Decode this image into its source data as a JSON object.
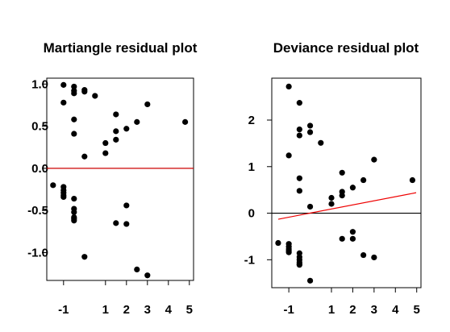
{
  "chart_data": [
    {
      "type": "scatter",
      "title": "Martiangle residual plot",
      "xlabel": "",
      "ylabel": "",
      "xlim": [
        -1.8,
        5.2
      ],
      "ylim": [
        -1.33,
        1.07
      ],
      "x_ticks": [
        -1,
        1,
        2,
        3,
        4,
        5
      ],
      "y_ticks": [
        1.0,
        0.5,
        0.0,
        -0.5,
        -1.0
      ],
      "x_tick_labels": [
        "-1",
        "1",
        "2",
        "3",
        "4",
        "5"
      ],
      "y_tick_labels": [
        "1.0",
        "0.5",
        "0.0",
        "-0.5",
        "-1.0"
      ],
      "hline": {
        "y": 0,
        "color": "#cc0000"
      },
      "fit_line": null,
      "points": [
        [
          -1.0,
          0.99
        ],
        [
          -0.5,
          0.97
        ],
        [
          0.0,
          0.93
        ],
        [
          -0.5,
          0.92
        ],
        [
          0.0,
          0.91
        ],
        [
          -0.5,
          0.89
        ],
        [
          0.5,
          0.86
        ],
        [
          -1.0,
          0.78
        ],
        [
          3.0,
          0.76
        ],
        [
          1.5,
          0.64
        ],
        [
          -0.5,
          0.58
        ],
        [
          2.5,
          0.55
        ],
        [
          4.8,
          0.55
        ],
        [
          2.0,
          0.47
        ],
        [
          1.5,
          0.44
        ],
        [
          -0.5,
          0.41
        ],
        [
          1.5,
          0.34
        ],
        [
          1.0,
          0.3
        ],
        [
          1.0,
          0.18
        ],
        [
          0.0,
          0.14
        ],
        [
          -1.5,
          -0.2
        ],
        [
          -1.0,
          -0.22
        ],
        [
          -1.0,
          -0.26
        ],
        [
          -1.0,
          -0.29
        ],
        [
          -1.0,
          -0.32
        ],
        [
          -1.0,
          -0.34
        ],
        [
          -0.5,
          -0.36
        ],
        [
          2.0,
          -0.44
        ],
        [
          -0.5,
          -0.48
        ],
        [
          -0.5,
          -0.52
        ],
        [
          -0.5,
          -0.58
        ],
        [
          -0.5,
          -0.6
        ],
        [
          -0.5,
          -0.62
        ],
        [
          1.5,
          -0.65
        ],
        [
          2.0,
          -0.66
        ],
        [
          0.0,
          -1.05
        ],
        [
          2.5,
          -1.2
        ],
        [
          3.0,
          -1.27
        ]
      ]
    },
    {
      "type": "scatter",
      "title": "Deviance residual plot",
      "xlabel": "",
      "ylabel": "",
      "xlim": [
        -1.8,
        5.2
      ],
      "ylim": [
        -1.6,
        2.9
      ],
      "x_ticks": [
        -1,
        1,
        2,
        3,
        4,
        5
      ],
      "y_ticks": [
        2,
        1,
        0,
        -1
      ],
      "x_tick_labels": [
        "-1",
        "1",
        "2",
        "3",
        "4",
        "5"
      ],
      "y_tick_labels": [
        "2",
        "1",
        "0",
        "-1"
      ],
      "hline": {
        "y": 0,
        "color": "#000000"
      },
      "fit_line": {
        "x": [
          -1.8,
          5.2
        ],
        "y": [
          -0.13,
          0.44
        ],
        "color": "#ee0000"
      },
      "points": [
        [
          -1.0,
          2.72
        ],
        [
          -0.5,
          2.37
        ],
        [
          0.0,
          1.88
        ],
        [
          -0.5,
          1.8
        ],
        [
          0.0,
          1.74
        ],
        [
          -0.5,
          1.67
        ],
        [
          0.5,
          1.51
        ],
        [
          -1.0,
          1.24
        ],
        [
          3.0,
          1.15
        ],
        [
          1.5,
          0.87
        ],
        [
          -0.5,
          0.75
        ],
        [
          2.5,
          0.71
        ],
        [
          4.8,
          0.71
        ],
        [
          2.0,
          0.55
        ],
        [
          1.5,
          0.46
        ],
        [
          -0.5,
          0.48
        ],
        [
          1.5,
          0.38
        ],
        [
          1.0,
          0.33
        ],
        [
          1.0,
          0.2
        ],
        [
          0.0,
          0.14
        ],
        [
          -1.5,
          -0.64
        ],
        [
          -1.0,
          -0.66
        ],
        [
          -1.0,
          -0.72
        ],
        [
          -1.0,
          -0.77
        ],
        [
          -1.0,
          -0.81
        ],
        [
          -1.0,
          -0.84
        ],
        [
          -0.5,
          -0.86
        ],
        [
          2.0,
          -0.4
        ],
        [
          -0.5,
          -0.94
        ],
        [
          -0.5,
          -1.0
        ],
        [
          -0.5,
          -1.06
        ],
        [
          -0.5,
          -1.09
        ],
        [
          -0.5,
          -1.11
        ],
        [
          1.5,
          -0.55
        ],
        [
          2.0,
          -0.55
        ],
        [
          0.0,
          -1.45
        ],
        [
          2.5,
          -0.9
        ],
        [
          3.0,
          -0.95
        ]
      ]
    }
  ]
}
